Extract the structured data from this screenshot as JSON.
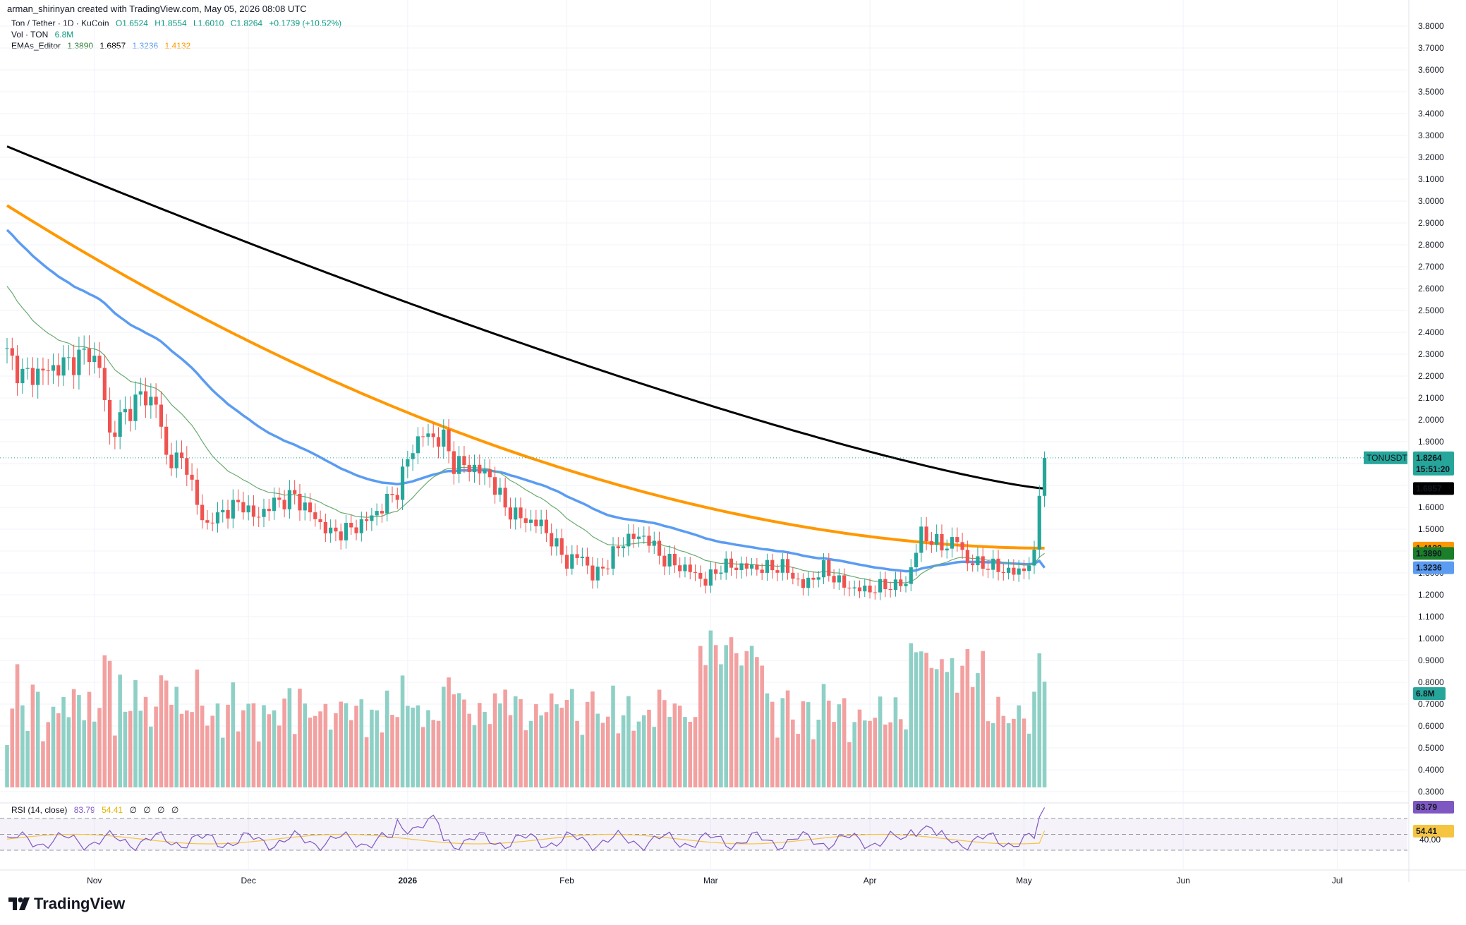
{
  "header": {
    "author_line": "arman_shirinyan created with TradingView.com, May 05, 2026 08:08 UTC"
  },
  "legend": {
    "symbol": "Ton / Tether · 1D · KuCoin",
    "ohlc": {
      "o": "O1.6524",
      "h": "H1.8554",
      "l": "L1.6010",
      "c": "C1.8264",
      "chg": "+0.1739 (+10.52%)"
    },
    "vol_label": "Vol · TON",
    "vol_value": "6.8M",
    "ema_label": "EMAs_Editor",
    "ema_values": [
      "1.3890",
      "1.6857",
      "1.3236",
      "1.4132"
    ],
    "rsi_label": "RSI (14, close)",
    "rsi_values": [
      "83.79",
      "54.41",
      "∅",
      "∅",
      "∅",
      "∅"
    ]
  },
  "colors": {
    "up": "#26a69a",
    "down": "#ef5350",
    "vol_up": "#8fd0c6",
    "vol_down": "#f3a0a0",
    "ema200": "#000000",
    "ema100": "#ff9800",
    "ema50": "#5b9cf2",
    "ema20": "#6aaa6f",
    "rsi": "#7e57c2",
    "rsi_ma": "#f5c542"
  },
  "price_tags": {
    "symbol_tag": "TONUSDT",
    "last": "1.8264",
    "countdown": "15:51:20",
    "ema200": "1.6857",
    "ema100": "1.4132",
    "ema20": "1.3890",
    "ema50": "1.3236",
    "vol": "6.8M",
    "rsi": "83.79",
    "rsi_ma": "54.41",
    "rsi_level": "40.00"
  },
  "branding": "TradingView",
  "chart_data": {
    "type": "candlestick",
    "price_axis_ticks": [
      "3.8000",
      "3.7000",
      "3.6000",
      "3.5000",
      "3.4000",
      "3.3000",
      "3.2000",
      "3.1000",
      "3.0000",
      "2.9000",
      "2.8000",
      "2.7000",
      "2.6000",
      "2.5000",
      "2.4000",
      "2.3000",
      "2.2000",
      "2.1000",
      "2.0000",
      "1.9000",
      "1.8000",
      "1.7000",
      "1.6000",
      "1.5000",
      "1.4000",
      "1.3000",
      "1.2000",
      "1.1000",
      "1.0000",
      "0.9000",
      "0.8000",
      "0.7000",
      "0.6000",
      "0.5000",
      "0.4000",
      "0.3000"
    ],
    "time_axis_labels": [
      {
        "label": "Nov",
        "day": 17
      },
      {
        "label": "Dec",
        "day": 47
      },
      {
        "label": "2026",
        "day": 78
      },
      {
        "label": "Feb",
        "day": 109
      },
      {
        "label": "Mar",
        "day": 137
      },
      {
        "label": "Apr",
        "day": 168
      },
      {
        "label": "May",
        "day": 198
      },
      {
        "label": "Jun",
        "day": 229
      },
      {
        "label": "Jul",
        "day": 259
      }
    ],
    "ylim": [
      0.3,
      3.8
    ],
    "x_range_days": [
      0,
      285
    ],
    "close_anchors": [
      [
        0,
        2.3
      ],
      [
        3,
        2.2
      ],
      [
        7,
        2.22
      ],
      [
        12,
        2.26
      ],
      [
        16,
        2.31
      ],
      [
        18,
        2.24
      ],
      [
        20,
        1.93
      ],
      [
        22,
        2.0
      ],
      [
        26,
        2.11
      ],
      [
        29,
        2.08
      ],
      [
        31,
        1.83
      ],
      [
        35,
        1.8
      ],
      [
        37,
        1.6
      ],
      [
        39,
        1.52
      ],
      [
        42,
        1.58
      ],
      [
        46,
        1.62
      ],
      [
        48,
        1.55
      ],
      [
        52,
        1.62
      ],
      [
        56,
        1.65
      ],
      [
        60,
        1.55
      ],
      [
        63,
        1.48
      ],
      [
        67,
        1.5
      ],
      [
        70,
        1.54
      ],
      [
        73,
        1.6
      ],
      [
        76,
        1.68
      ],
      [
        79,
        1.88
      ],
      [
        81,
        1.93
      ],
      [
        85,
        1.91
      ],
      [
        87,
        1.8
      ],
      [
        91,
        1.78
      ],
      [
        94,
        1.74
      ],
      [
        97,
        1.6
      ],
      [
        100,
        1.55
      ],
      [
        104,
        1.52
      ],
      [
        107,
        1.42
      ],
      [
        109,
        1.35
      ],
      [
        112,
        1.38
      ],
      [
        114,
        1.28
      ],
      [
        117,
        1.35
      ],
      [
        120,
        1.45
      ],
      [
        124,
        1.47
      ],
      [
        128,
        1.36
      ],
      [
        133,
        1.31
      ],
      [
        136,
        1.26
      ],
      [
        139,
        1.33
      ],
      [
        143,
        1.33
      ],
      [
        147,
        1.32
      ],
      [
        151,
        1.33
      ],
      [
        155,
        1.24
      ],
      [
        159,
        1.32
      ],
      [
        163,
        1.24
      ],
      [
        167,
        1.22
      ],
      [
        171,
        1.24
      ],
      [
        175,
        1.25
      ],
      [
        178,
        1.48
      ],
      [
        182,
        1.42
      ],
      [
        185,
        1.45
      ],
      [
        187,
        1.35
      ],
      [
        190,
        1.34
      ],
      [
        193,
        1.32
      ],
      [
        196,
        1.3
      ],
      [
        198,
        1.32
      ],
      [
        200,
        1.37
      ],
      [
        201,
        1.6524
      ],
      [
        202,
        1.8264
      ]
    ],
    "last_candle": {
      "open": 1.6524,
      "high": 1.8554,
      "low": 1.601,
      "close": 1.8264
    },
    "ema_endpoints": {
      "ema200": 1.6857,
      "ema100": 1.4132,
      "ema20": 1.389,
      "ema50": 1.3236
    },
    "ema_start": {
      "ema200": 3.25,
      "ema100": 2.98,
      "ema50": 2.89,
      "ema20": 2.64
    },
    "volume_last": "6.8M",
    "volume_scale": {
      "axis_shared": true
    },
    "rsi": {
      "last": 83.79,
      "ma_last": 54.41,
      "levels": [
        70,
        50,
        30
      ]
    }
  }
}
